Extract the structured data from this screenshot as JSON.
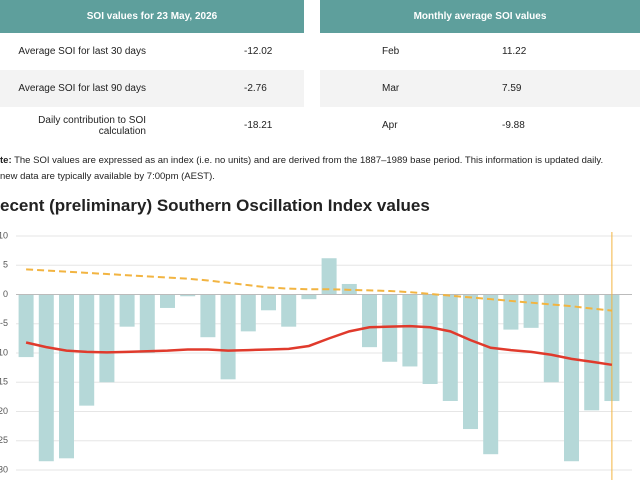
{
  "left_table": {
    "title": "SOI values for 23 May, 2026",
    "rows": [
      [
        "Average SOI for last 30 days",
        "-12.02"
      ],
      [
        "Average SOI for last 90 days",
        "-2.76"
      ],
      [
        "Daily contribution to SOI calculation",
        "-18.21"
      ]
    ]
  },
  "right_table": {
    "title": "Monthly average SOI values",
    "rows": [
      [
        "Feb",
        "11.22"
      ],
      [
        "Mar",
        "7.59"
      ],
      [
        "Apr",
        "-9.88"
      ]
    ]
  },
  "note": {
    "label": "te:",
    "text": "The SOI values are expressed as an index (i.e. no units) and are derived from the 1887–1989 base period. This information is updated daily.",
    "text2": "new data are typically available by 7:00pm (AEST)."
  },
  "chart_data": {
    "type": "bar",
    "title": "ecent (preliminary) Southern Oscillation Index values",
    "values": [
      -10.7,
      -28.5,
      -28,
      -19,
      -15,
      -5.5,
      -10,
      -2.3,
      -0.3,
      -7.3,
      -14.5,
      -6.3,
      -2.7,
      -5.5,
      -0.8,
      6.2,
      1.8,
      -9,
      -11.5,
      -12.3,
      -15.3,
      -18.2,
      -23,
      -27.3,
      -6,
      -5.7,
      -15,
      -28.5,
      -19.8,
      -18.21
    ],
    "color": "#b5d8d8",
    "series": [
      {
        "type": "line",
        "color": "#f2b441",
        "dashed": true,
        "values": [
          4.3,
          4.1,
          3.9,
          3.7,
          3.5,
          3.3,
          3.1,
          2.9,
          2.7,
          2.4,
          2.0,
          1.6,
          1.2,
          1.0,
          0.9,
          0.9,
          0.8,
          0.7,
          0.6,
          0.4,
          0.1,
          -0.2,
          -0.5,
          -0.8,
          -1.1,
          -1.4,
          -1.7,
          -2.0,
          -2.4,
          -2.76
        ]
      },
      {
        "type": "line",
        "color": "#e03a2c",
        "dashed": false,
        "values": [
          -8.2,
          -9,
          -9.6,
          -9.8,
          -9.9,
          -9.8,
          -9.7,
          -9.6,
          -9.4,
          -9.4,
          -9.6,
          -9.5,
          -9.4,
          -9.3,
          -8.8,
          -7.5,
          -6.3,
          -5.6,
          -5.5,
          -5.4,
          -5.6,
          -6.3,
          -7.8,
          -9.1,
          -9.5,
          -9.8,
          -10.3,
          -11,
          -11.5,
          -12.02
        ]
      }
    ],
    "ylim": [
      -30,
      10
    ],
    "yticks": [
      10,
      5,
      0,
      -5,
      -10,
      -15,
      -20,
      -25,
      -30
    ],
    "grid": true
  }
}
